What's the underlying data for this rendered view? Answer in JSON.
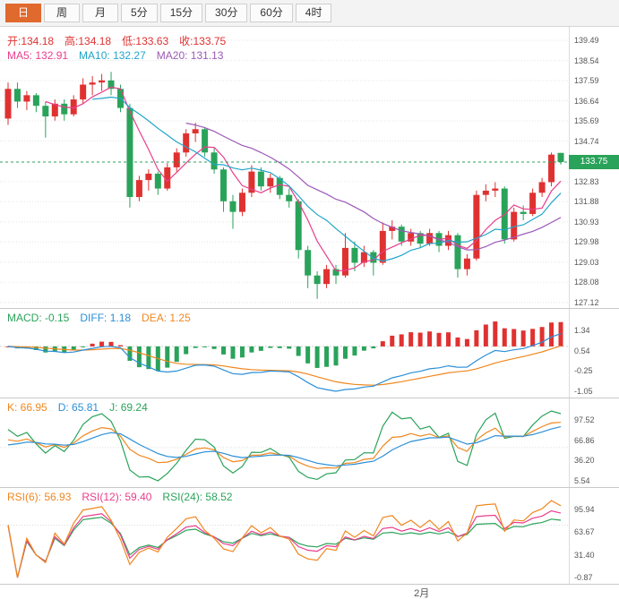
{
  "colors": {
    "up": "#e03131",
    "down": "#2aa35a",
    "grid": "#e6e6e6",
    "ma5": "#e83e8c",
    "ma10": "#20a5c9",
    "ma20": "#9b59b6",
    "diff": "#2b8fd8",
    "dea": "#f0871f",
    "k": "#f0871f",
    "d": "#2b8fd8",
    "j": "#2aa35a",
    "rsi6": "#f0871f",
    "rsi12": "#e83e8c",
    "rsi24": "#2aa35a",
    "active_tab": "#e0692e",
    "badge_bg": "#2aa35a"
  },
  "toolbar": {
    "tabs": [
      {
        "label": "日",
        "name": "tab-day",
        "active": true
      },
      {
        "label": "周",
        "name": "tab-week",
        "active": false
      },
      {
        "label": "月",
        "name": "tab-month",
        "active": false
      },
      {
        "label": "5分",
        "name": "tab-5min",
        "active": false
      },
      {
        "label": "15分",
        "name": "tab-15min",
        "active": false
      },
      {
        "label": "30分",
        "name": "tab-30min",
        "active": false
      },
      {
        "label": "60分",
        "name": "tab-60min",
        "active": false
      },
      {
        "label": "4时",
        "name": "tab-4hour",
        "active": false
      }
    ]
  },
  "main_panel": {
    "quote_segments": [
      {
        "text": "开:134.18",
        "color": "#e03131"
      },
      {
        "text": "高:134.18",
        "color": "#e03131"
      },
      {
        "text": "低:133.63",
        "color": "#e03131"
      },
      {
        "text": "收:133.75",
        "color": "#e03131"
      }
    ],
    "ma_segments": [
      {
        "text": "MA5: 132.91",
        "color": "#e83e8c"
      },
      {
        "text": "MA10: 132.27",
        "color": "#20a5c9"
      },
      {
        "text": "MA20: 131.13",
        "color": "#9b59b6"
      }
    ],
    "last_price_label": "133.75"
  },
  "macd_panel": {
    "segments": [
      {
        "text": "MACD: -0.15",
        "color": "#2aa35a"
      },
      {
        "text": "DIFF: 1.18",
        "color": "#2b8fd8"
      },
      {
        "text": "DEA: 1.25",
        "color": "#f0871f"
      }
    ]
  },
  "kdj_panel": {
    "segments": [
      {
        "text": "K: 66.95",
        "color": "#f0871f"
      },
      {
        "text": "D: 65.81",
        "color": "#2b8fd8"
      },
      {
        "text": "J: 69.24",
        "color": "#2aa35a"
      }
    ]
  },
  "rsi_panel": {
    "segments": [
      {
        "text": "RSI(6): 56.93",
        "color": "#f0871f"
      },
      {
        "text": "RSI(12): 59.40",
        "color": "#e83e8c"
      },
      {
        "text": "RSI(24): 58.52",
        "color": "#2aa35a"
      }
    ]
  },
  "chart_data": {
    "type": "candlestick",
    "timeframe": "日",
    "quote": {
      "open": 134.18,
      "high": 134.18,
      "low": 133.63,
      "close": 133.75
    },
    "ma_values": {
      "MA5": 132.91,
      "MA10": 132.27,
      "MA20": 131.13
    },
    "macd_values": {
      "MACD": -0.15,
      "DIFF": 1.18,
      "DEA": 1.25
    },
    "kdj_values": {
      "K": 66.95,
      "D": 65.81,
      "J": 69.24
    },
    "rsi_values": {
      "RSI6": 56.93,
      "RSI12": 59.4,
      "RSI24": 58.52
    },
    "panels": {
      "main": {
        "y_ticks": [
          139.49,
          138.54,
          137.59,
          136.64,
          135.69,
          134.74,
          132.83,
          131.88,
          130.93,
          129.98,
          129.03,
          128.08,
          127.12
        ],
        "last_price": 133.75,
        "ma_periods": [
          5,
          10,
          20
        ]
      },
      "macd": {
        "params": [
          12,
          26,
          9
        ],
        "y_ticks": [
          1.34,
          0.54,
          -0.25,
          -1.05
        ]
      },
      "kdj": {
        "params": [
          9,
          3,
          3
        ],
        "y_ticks": [
          97.52,
          66.86,
          36.2,
          5.54
        ]
      },
      "rsi": {
        "params": [
          6,
          12,
          24
        ],
        "y_ticks": [
          95.94,
          63.67,
          31.4,
          -0.87
        ]
      }
    },
    "x_axis_labels": [
      {
        "label": "2月",
        "index": 44
      }
    ],
    "candles": [
      [
        135.8,
        137.5,
        135.5,
        137.2
      ],
      [
        137.2,
        137.5,
        136.3,
        136.6
      ],
      [
        136.6,
        137.1,
        136.2,
        136.9
      ],
      [
        136.9,
        137.0,
        136.1,
        136.4
      ],
      [
        136.4,
        136.6,
        134.9,
        135.9
      ],
      [
        135.9,
        136.7,
        135.7,
        136.5
      ],
      [
        136.5,
        136.7,
        135.7,
        136.0
      ],
      [
        136.0,
        136.9,
        135.9,
        136.7
      ],
      [
        136.7,
        137.7,
        136.5,
        137.4
      ],
      [
        137.4,
        137.8,
        136.9,
        137.5
      ],
      [
        137.5,
        137.9,
        137.1,
        137.6
      ],
      [
        137.6,
        138.0,
        136.9,
        137.2
      ],
      [
        137.2,
        137.4,
        136.1,
        136.3
      ],
      [
        136.3,
        136.5,
        131.6,
        132.1
      ],
      [
        132.1,
        133.1,
        131.9,
        132.9
      ],
      [
        132.9,
        133.4,
        132.4,
        133.2
      ],
      [
        133.2,
        133.3,
        132.2,
        132.5
      ],
      [
        132.5,
        133.7,
        132.4,
        133.5
      ],
      [
        133.5,
        134.4,
        133.3,
        134.2
      ],
      [
        134.2,
        135.3,
        134.0,
        135.1
      ],
      [
        135.1,
        135.6,
        134.7,
        135.3
      ],
      [
        135.3,
        135.4,
        134.0,
        134.2
      ],
      [
        134.2,
        134.4,
        133.2,
        133.4
      ],
      [
        133.4,
        133.5,
        131.4,
        131.9
      ],
      [
        131.9,
        132.2,
        130.6,
        131.4
      ],
      [
        131.4,
        132.5,
        131.2,
        132.3
      ],
      [
        132.3,
        133.6,
        132.1,
        133.3
      ],
      [
        133.3,
        133.5,
        132.4,
        132.6
      ],
      [
        132.6,
        133.2,
        132.3,
        133.0
      ],
      [
        133.0,
        133.1,
        132.0,
        132.2
      ],
      [
        132.2,
        132.5,
        131.6,
        131.9
      ],
      [
        131.9,
        132.0,
        129.2,
        129.6
      ],
      [
        129.6,
        129.8,
        127.8,
        128.4
      ],
      [
        128.4,
        128.6,
        127.3,
        128.0
      ],
      [
        128.0,
        128.9,
        127.8,
        128.7
      ],
      [
        128.7,
        128.9,
        128.0,
        128.4
      ],
      [
        128.4,
        130.4,
        128.3,
        129.7
      ],
      [
        129.7,
        130.0,
        128.6,
        129.0
      ],
      [
        129.0,
        129.8,
        128.8,
        129.5
      ],
      [
        129.5,
        129.6,
        128.4,
        129.0
      ],
      [
        129.0,
        130.9,
        128.9,
        130.5
      ],
      [
        130.5,
        131.0,
        130.1,
        130.7
      ],
      [
        130.7,
        130.8,
        129.8,
        130.0
      ],
      [
        130.0,
        130.6,
        129.8,
        130.4
      ],
      [
        130.4,
        130.5,
        129.7,
        129.9
      ],
      [
        129.9,
        130.6,
        129.8,
        130.4
      ],
      [
        130.4,
        130.5,
        129.5,
        129.8
      ],
      [
        129.8,
        130.5,
        129.6,
        130.3
      ],
      [
        130.3,
        130.4,
        128.3,
        128.7
      ],
      [
        128.7,
        129.4,
        128.4,
        129.2
      ],
      [
        129.2,
        132.4,
        129.1,
        132.2
      ],
      [
        132.2,
        132.7,
        131.9,
        132.4
      ],
      [
        132.4,
        132.8,
        132.1,
        132.5
      ],
      [
        132.5,
        132.6,
        129.9,
        130.1
      ],
      [
        130.1,
        131.6,
        130.0,
        131.4
      ],
      [
        131.4,
        131.7,
        131.0,
        131.3
      ],
      [
        131.3,
        132.5,
        131.2,
        132.3
      ],
      [
        132.3,
        133.0,
        132.1,
        132.8
      ],
      [
        132.8,
        134.2,
        132.6,
        134.1
      ],
      [
        134.18,
        134.18,
        133.63,
        133.75
      ]
    ]
  }
}
